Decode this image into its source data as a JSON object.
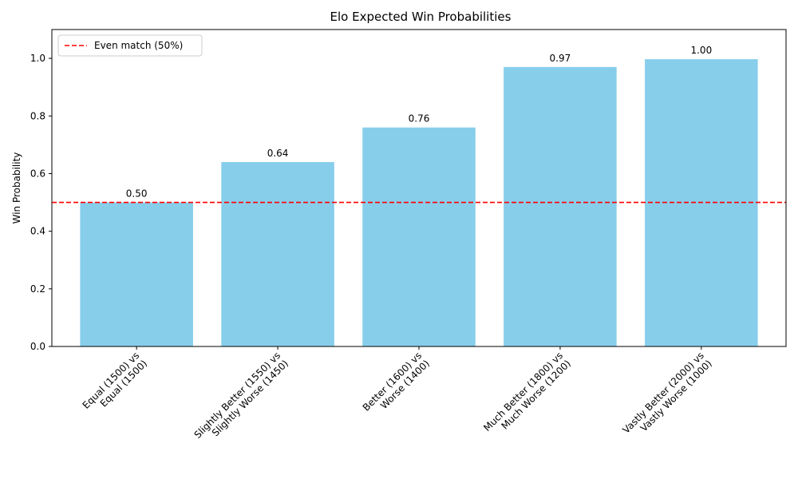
{
  "chart_data": {
    "type": "bar",
    "title": "Elo Expected Win Probabilities",
    "xlabel": "",
    "ylabel": "Win Probability",
    "categories": [
      "Equal (1500) vs\nEqual (1500)",
      "Slightly Better (1550) vs\nSlightly Worse (1450)",
      "Better (1600) vs\nWorse (1400)",
      "Much Better (1800) vs\nMuch Worse (1200)",
      "Vastly Better (2000) vs\nVastly Worse (1000)"
    ],
    "values": [
      0.5,
      0.64,
      0.76,
      0.97,
      0.997
    ],
    "value_labels": [
      "0.50",
      "0.64",
      "0.76",
      "0.97",
      "1.00"
    ],
    "ylim": [
      0,
      1.1
    ],
    "yticks": [
      0.0,
      0.2,
      0.4,
      0.6,
      0.8,
      1.0
    ],
    "ytick_labels": [
      "0.0",
      "0.2",
      "0.4",
      "0.6",
      "0.8",
      "1.0"
    ],
    "bar_color": "#87ceeb",
    "reference_line": {
      "y": 0.5,
      "label": "Even match (50%)",
      "color": "#ff0000",
      "style": "dashed"
    },
    "legend_position": "top-left",
    "grid": false
  }
}
